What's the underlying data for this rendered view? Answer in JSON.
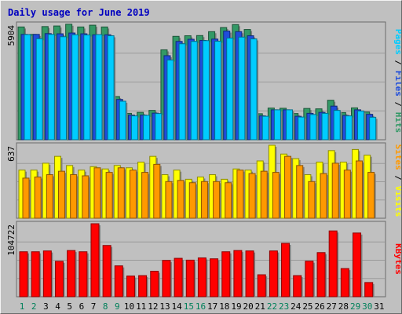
{
  "chart_data": {
    "type": "bar",
    "title": "Daily usage for June 2019",
    "categories": [
      "1",
      "2",
      "3",
      "4",
      "5",
      "6",
      "7",
      "8",
      "9",
      "10",
      "11",
      "12",
      "13",
      "14",
      "15",
      "16",
      "17",
      "18",
      "19",
      "20",
      "21",
      "22",
      "23",
      "24",
      "25",
      "26",
      "27",
      "28",
      "29",
      "30",
      "31"
    ],
    "weekend_days": [
      "1",
      "2",
      "8",
      "9",
      "15",
      "16",
      "22",
      "23",
      "29",
      "30"
    ],
    "panels": [
      {
        "id": "hits-files-pages",
        "ymax_label": "5904",
        "ymax": 5904,
        "series": [
          {
            "name": "Hits",
            "color": "#339966",
            "values": [
              5770,
              5390,
              5790,
              5820,
              5910,
              5770,
              5860,
              5770,
              2210,
              1350,
              1400,
              1500,
              4600,
              5290,
              5320,
              5330,
              5530,
              5740,
              5890,
              5640,
              1330,
              1620,
              1610,
              1340,
              1600,
              1580,
              2020,
              1390,
              1630,
              1420,
              null
            ]
          },
          {
            "name": "Files",
            "color": "#1f4ddb",
            "values": [
              5390,
              5390,
              5430,
              5420,
              5460,
              5420,
              5370,
              5370,
              2060,
              1260,
              1260,
              1360,
              4300,
              5030,
              5140,
              5080,
              5150,
              5560,
              5530,
              5320,
              1220,
              1530,
              1530,
              1200,
              1350,
              1400,
              1720,
              1240,
              1530,
              1300,
              null
            ]
          },
          {
            "name": "Pages",
            "color": "#00ccff",
            "values": [
              5380,
              5170,
              5390,
              5270,
              5370,
              5360,
              5380,
              5320,
              1970,
              1220,
              1250,
              1340,
              4080,
              4910,
              5030,
              5070,
              5040,
              5200,
              5250,
              5160,
              1200,
              1530,
              1530,
              1160,
              1290,
              1350,
              1500,
              1220,
              1470,
              1150,
              null
            ]
          }
        ],
        "legend": [
          "Pages",
          "Files",
          "Hits"
        ]
      },
      {
        "id": "visits-sites",
        "ymax_label": "637",
        "ymax": 637,
        "series": [
          {
            "name": "Visits",
            "color": "#ffff00",
            "values": [
              420,
              420,
              480,
              540,
              460,
              420,
              450,
              430,
              460,
              440,
              490,
              540,
              380,
              420,
              340,
              360,
              380,
              340,
              430,
              420,
              500,
              637,
              560,
              520,
              380,
              490,
              590,
              490,
              600,
              550,
              null
            ]
          },
          {
            "name": "Sites",
            "color": "#ff9900",
            "values": [
              350,
              360,
              380,
              410,
              380,
              370,
              440,
              400,
              440,
              420,
              400,
              470,
              320,
              330,
              310,
              320,
              320,
              310,
              420,
              390,
              410,
              400,
              540,
              460,
              320,
              390,
              480,
              420,
              500,
              400,
              null
            ]
          }
        ],
        "legend": [
          "Sites",
          "Visits"
        ]
      },
      {
        "id": "kbytes",
        "ymax_label": "104722",
        "ymax": 104722,
        "series": [
          {
            "name": "KBytes",
            "color": "#ff0000",
            "values": [
              64500,
              64500,
              65700,
              50800,
              66300,
              64500,
              104722,
              73500,
              44300,
              29700,
              30300,
              36600,
              52100,
              55100,
              52500,
              55700,
              54400,
              64500,
              66300,
              65700,
              31500,
              65700,
              76600,
              30300,
              51000,
              63300,
              94400,
              40400,
              91400,
              20400,
              null
            ]
          }
        ],
        "legend": [
          "KBytes"
        ]
      }
    ],
    "grid": true
  }
}
